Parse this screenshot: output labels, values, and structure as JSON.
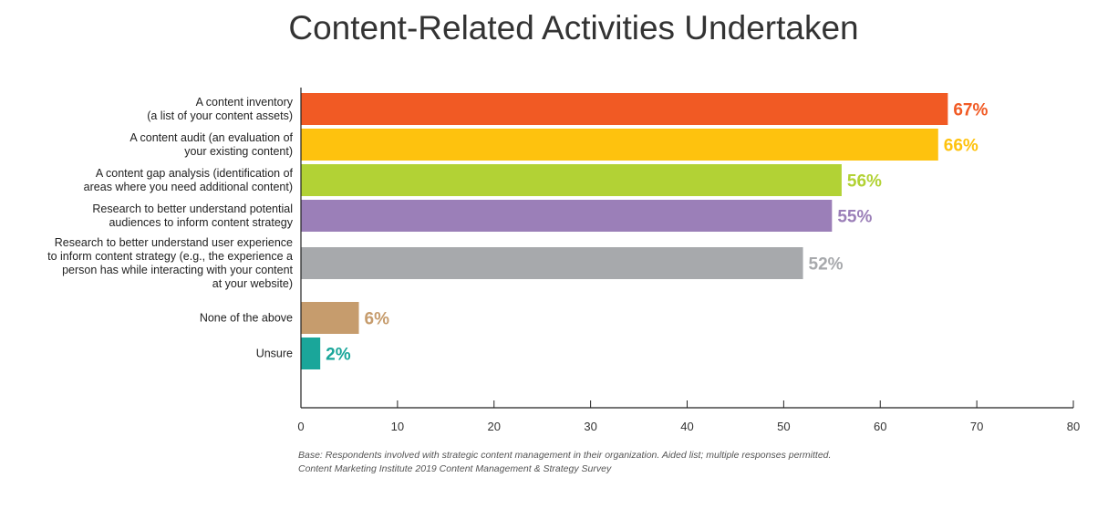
{
  "chart_data": {
    "type": "bar",
    "orientation": "horizontal",
    "title": "Content-Related Activities Undertaken",
    "categories": [
      [
        "A content inventory",
        "(a list of your content assets)"
      ],
      [
        "A content audit (an evaluation of",
        "your existing content)"
      ],
      [
        "A content gap analysis (identification of",
        "areas where you need additional content)"
      ],
      [
        "Research to better understand potential",
        "audiences to inform content strategy"
      ],
      [
        "Research to better understand user experience",
        "to inform content strategy (e.g., the experience a",
        "person has while interacting with your content",
        "at your website)"
      ],
      [
        "None of the above"
      ],
      [
        "Unsure"
      ]
    ],
    "values": [
      67,
      66,
      56,
      55,
      52,
      6,
      2
    ],
    "value_labels": [
      "67%",
      "66%",
      "56%",
      "55%",
      "52%",
      "6%",
      "2%"
    ],
    "colors": [
      "#f15a24",
      "#fec20e",
      "#b2d235",
      "#9b7fb8",
      "#a7a9ac",
      "#c69c6d",
      "#1aa69a"
    ],
    "xlim": [
      0,
      80
    ],
    "xticks": [
      "0",
      "10",
      "20",
      "30",
      "40",
      "50",
      "60",
      "70",
      "80"
    ],
    "xlabel": "",
    "ylabel": ""
  },
  "footnote": {
    "line1": "Base: Respondents involved with strategic content management in their organization. Aided list; multiple responses permitted.",
    "line2": "Content Marketing Institute 2019 Content Management & Strategy Survey"
  }
}
